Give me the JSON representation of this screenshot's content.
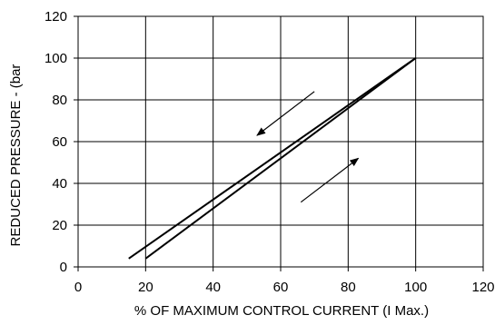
{
  "chart_data": {
    "type": "line",
    "title": "",
    "xlabel": "% OF MAXIMUM CONTROL CURRENT (I Max.)",
    "ylabel": "REDUCED PRESSURE - (bar",
    "xlim": [
      0,
      120
    ],
    "ylim": [
      0,
      120
    ],
    "xticks": [
      0,
      20,
      40,
      60,
      80,
      100,
      120
    ],
    "yticks": [
      0,
      20,
      40,
      60,
      80,
      100,
      120
    ],
    "grid": true,
    "legend": "none",
    "series": [
      {
        "direction": "decreasing",
        "x": [
          15,
          100
        ],
        "y": [
          4,
          100
        ]
      },
      {
        "direction": "increasing",
        "x": [
          20,
          100
        ],
        "y": [
          4,
          100
        ]
      }
    ],
    "annotations": [
      {
        "kind": "arrow",
        "meaning": "decreasing current",
        "from": [
          70,
          84
        ],
        "to": [
          53,
          63
        ]
      },
      {
        "kind": "arrow",
        "meaning": "increasing current",
        "from": [
          66,
          31
        ],
        "to": [
          83,
          52
        ]
      }
    ],
    "colors": {
      "line": "#000000",
      "grid": "#000000",
      "background": "#ffffff"
    }
  }
}
